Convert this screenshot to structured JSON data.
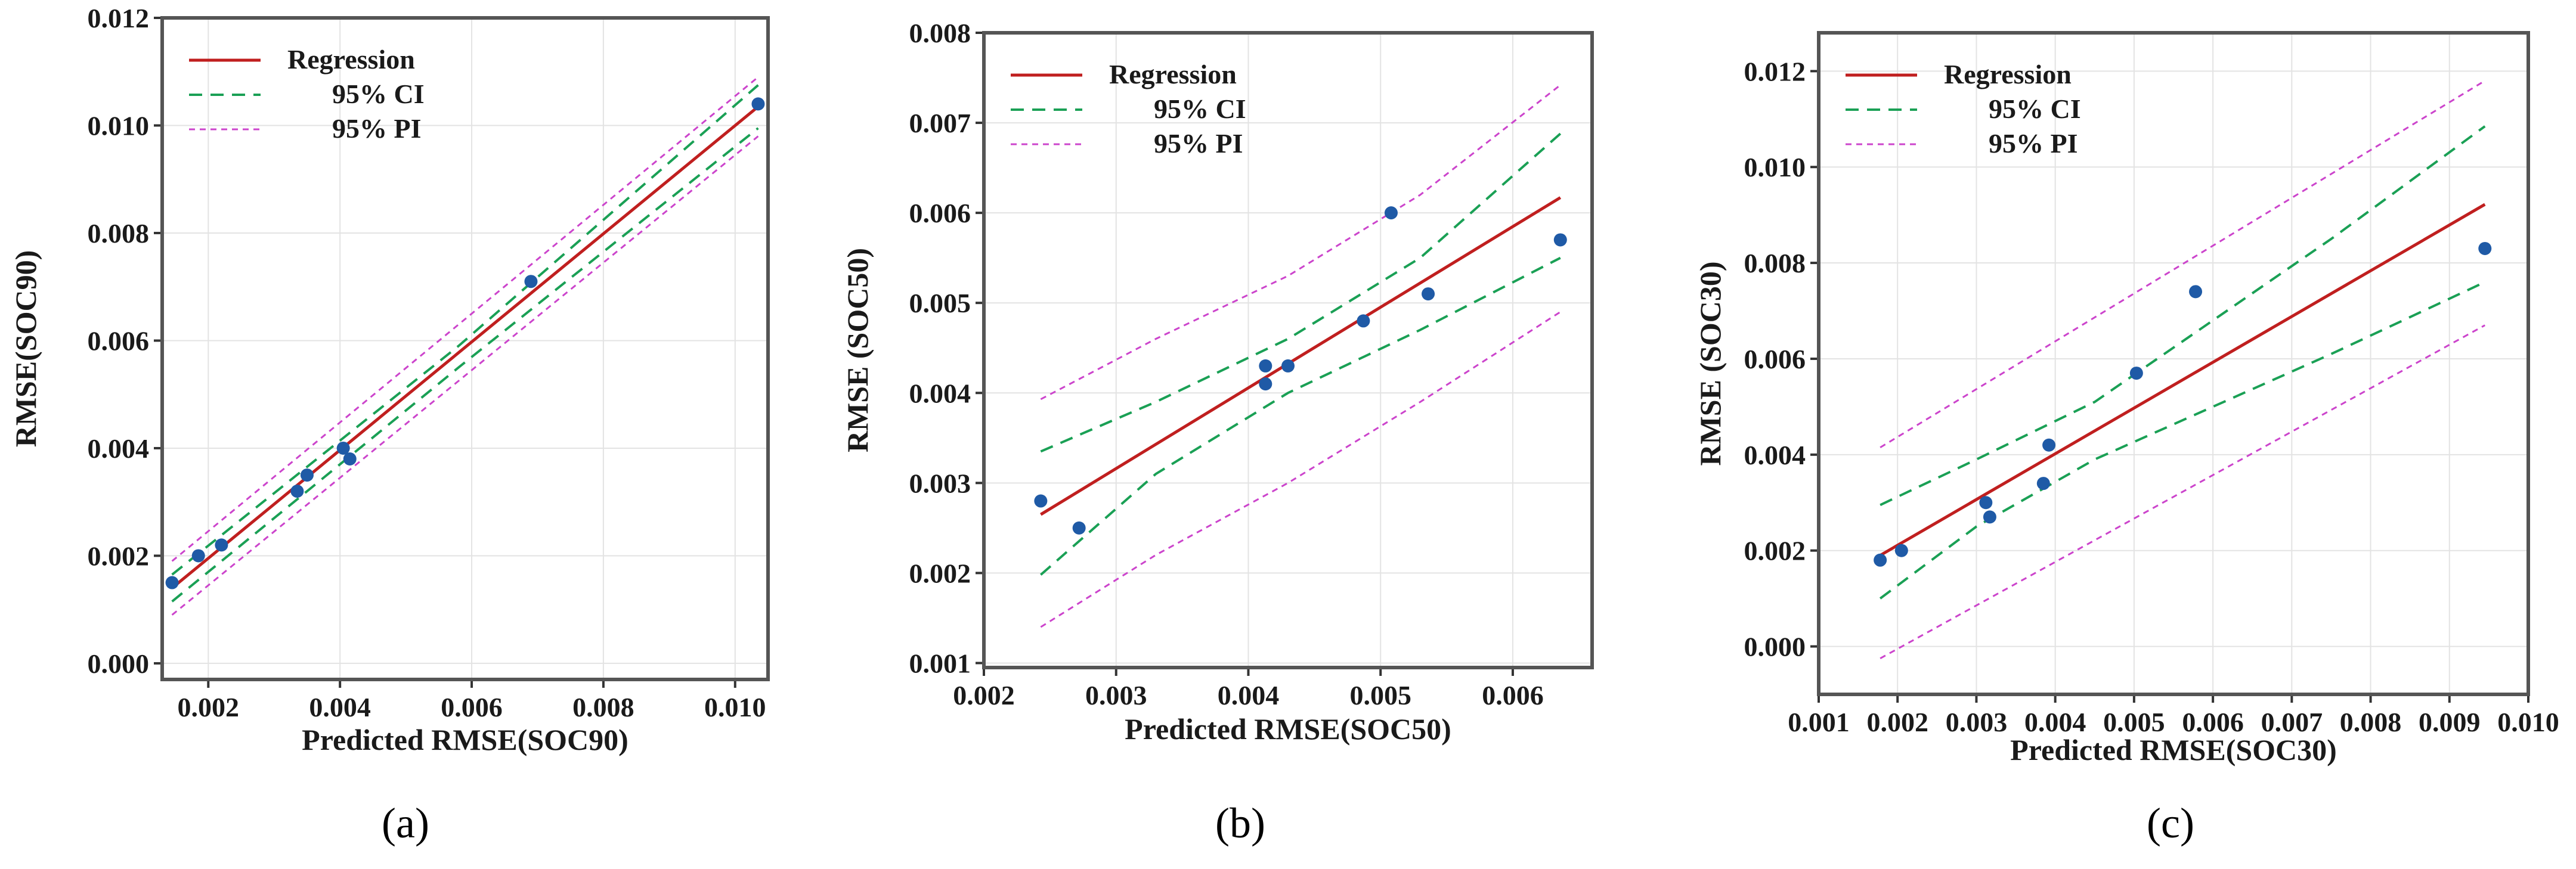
{
  "chart_data": [
    {
      "type": "scatter",
      "panel_label": "(a)",
      "xlabel": "Predicted RMSE(SOC90)",
      "ylabel": "RMSE(SOC90)",
      "xlim": [
        0.0013,
        0.0105
      ],
      "ylim": [
        -0.0003,
        0.012
      ],
      "xticks": [
        0.002,
        0.004,
        0.006,
        0.008,
        0.01
      ],
      "xtick_labels": [
        "0.002",
        "0.004",
        "0.006",
        "0.008",
        "0.010"
      ],
      "yticks": [
        0.0,
        0.002,
        0.004,
        0.006,
        0.008,
        0.01,
        0.012
      ],
      "ytick_labels": [
        "0.000",
        "0.002",
        "0.004",
        "0.006",
        "0.008",
        "0.010",
        "0.012"
      ],
      "legend": {
        "placement": "top-left",
        "regression": "Regression",
        "ci": "95% CI",
        "pi": "95% PI"
      },
      "points": [
        {
          "x": 0.00145,
          "y": 0.0015
        },
        {
          "x": 0.00185,
          "y": 0.002
        },
        {
          "x": 0.0022,
          "y": 0.0022
        },
        {
          "x": 0.00335,
          "y": 0.0032
        },
        {
          "x": 0.0035,
          "y": 0.0035
        },
        {
          "x": 0.00405,
          "y": 0.004
        },
        {
          "x": 0.00415,
          "y": 0.0038
        },
        {
          "x": 0.0069,
          "y": 0.0071
        },
        {
          "x": 0.01035,
          "y": 0.0104
        }
      ],
      "regression": {
        "x": [
          0.00145,
          0.01035
        ],
        "y": [
          0.0014,
          0.01035
        ]
      },
      "ci_upper": {
        "x": [
          0.00145,
          0.0058,
          0.01035
        ],
        "y": [
          0.00165,
          0.0059,
          0.01075
        ]
      },
      "ci_lower": {
        "x": [
          0.00145,
          0.0058,
          0.01035
        ],
        "y": [
          0.00115,
          0.0055,
          0.00995
        ]
      },
      "pi_upper": {
        "x": [
          0.00145,
          0.01035
        ],
        "y": [
          0.0019,
          0.0109
        ]
      },
      "pi_lower": {
        "x": [
          0.00145,
          0.01035
        ],
        "y": [
          0.0009,
          0.0098
        ]
      }
    },
    {
      "type": "scatter",
      "panel_label": "(b)",
      "xlabel": "Predicted RMSE(SOC50)",
      "ylabel": "RMSE (SOC50)",
      "xlim": [
        0.002,
        0.0066
      ],
      "ylim": [
        0.00095,
        0.008
      ],
      "xticks": [
        0.002,
        0.003,
        0.004,
        0.005,
        0.006
      ],
      "xtick_labels": [
        "0.002",
        "0.003",
        "0.004",
        "0.005",
        "0.006"
      ],
      "yticks": [
        0.001,
        0.002,
        0.003,
        0.004,
        0.005,
        0.006,
        0.007,
        0.008
      ],
      "ytick_labels": [
        "0.001",
        "0.002",
        "0.003",
        "0.004",
        "0.005",
        "0.006",
        "0.007",
        "0.008"
      ],
      "legend": {
        "placement": "top-left",
        "regression": "Regression",
        "ci": "95% CI",
        "pi": "95% PI"
      },
      "points": [
        {
          "x": 0.00243,
          "y": 0.0028
        },
        {
          "x": 0.00272,
          "y": 0.0025
        },
        {
          "x": 0.00413,
          "y": 0.0043
        },
        {
          "x": 0.00413,
          "y": 0.0041
        },
        {
          "x": 0.0043,
          "y": 0.0043
        },
        {
          "x": 0.00487,
          "y": 0.0048
        },
        {
          "x": 0.00508,
          "y": 0.006
        },
        {
          "x": 0.00536,
          "y": 0.0051
        },
        {
          "x": 0.00636,
          "y": 0.0057
        }
      ],
      "regression": {
        "x": [
          0.00243,
          0.00636
        ],
        "y": [
          0.00265,
          0.00617
        ]
      },
      "ci_upper": {
        "x": [
          0.00243,
          0.0033,
          0.0043,
          0.0053,
          0.00636
        ],
        "y": [
          0.00335,
          0.0039,
          0.0046,
          0.0055,
          0.00688
        ]
      },
      "ci_lower": {
        "x": [
          0.00243,
          0.0033,
          0.0043,
          0.0053,
          0.00636
        ],
        "y": [
          0.00198,
          0.0031,
          0.004,
          0.0047,
          0.0055
        ]
      },
      "pi_upper": {
        "x": [
          0.00243,
          0.0033,
          0.0043,
          0.0053,
          0.00636
        ],
        "y": [
          0.00393,
          0.0046,
          0.0053,
          0.0062,
          0.00742
        ]
      },
      "pi_lower": {
        "x": [
          0.00243,
          0.0033,
          0.0043,
          0.0053,
          0.00636
        ],
        "y": [
          0.0014,
          0.0022,
          0.003,
          0.0039,
          0.0049
        ]
      }
    },
    {
      "type": "scatter",
      "panel_label": "(c)",
      "xlabel": "Predicted RMSE(SOC30)",
      "ylabel": "RMSE (SOC30)",
      "xlim": [
        0.001,
        0.01
      ],
      "ylim": [
        -0.001,
        0.0128
      ],
      "xticks": [
        0.001,
        0.002,
        0.003,
        0.004,
        0.005,
        0.006,
        0.007,
        0.008,
        0.009,
        0.01
      ],
      "xtick_labels": [
        "0.001",
        "0.002",
        "0.003",
        "0.004",
        "0.005",
        "0.006",
        "0.007",
        "0.008",
        "0.009",
        "0.010"
      ],
      "yticks": [
        0.0,
        0.002,
        0.004,
        0.006,
        0.008,
        0.01,
        0.012
      ],
      "ytick_labels": [
        "0.000",
        "0.002",
        "0.004",
        "0.006",
        "0.008",
        "0.010",
        "0.012"
      ],
      "legend": {
        "placement": "top-left",
        "regression": "Regression",
        "ci": "95% CI",
        "pi": "95% PI"
      },
      "points": [
        {
          "x": 0.00178,
          "y": 0.0018
        },
        {
          "x": 0.00205,
          "y": 0.002
        },
        {
          "x": 0.00312,
          "y": 0.003
        },
        {
          "x": 0.00317,
          "y": 0.0027
        },
        {
          "x": 0.00385,
          "y": 0.0034
        },
        {
          "x": 0.00392,
          "y": 0.0042
        },
        {
          "x": 0.00503,
          "y": 0.0057
        },
        {
          "x": 0.00578,
          "y": 0.0074
        },
        {
          "x": 0.00945,
          "y": 0.0083
        }
      ],
      "regression": {
        "x": [
          0.00178,
          0.00945
        ],
        "y": [
          0.0019,
          0.00922
        ]
      },
      "ci_upper": {
        "x": [
          0.00178,
          0.003,
          0.0045,
          0.006,
          0.0075,
          0.00945
        ],
        "y": [
          0.00295,
          0.0039,
          0.0051,
          0.0068,
          0.0085,
          0.01085
        ]
      },
      "ci_lower": {
        "x": [
          0.00178,
          0.003,
          0.0045,
          0.006,
          0.0075,
          0.00945
        ],
        "y": [
          0.001,
          0.0025,
          0.0039,
          0.005,
          0.0061,
          0.0076
        ]
      },
      "pi_upper": {
        "x": [
          0.00178,
          0.00945
        ],
        "y": [
          0.00415,
          0.0118
        ]
      },
      "pi_lower": {
        "x": [
          0.00178,
          0.00945
        ],
        "y": [
          -0.00025,
          0.0067
        ]
      }
    }
  ],
  "colors": {
    "regression": "#c01f1f",
    "ci": "#1aa055",
    "pi": "#cc44cc",
    "point": "#1f5aa6",
    "frame": "#555555"
  }
}
